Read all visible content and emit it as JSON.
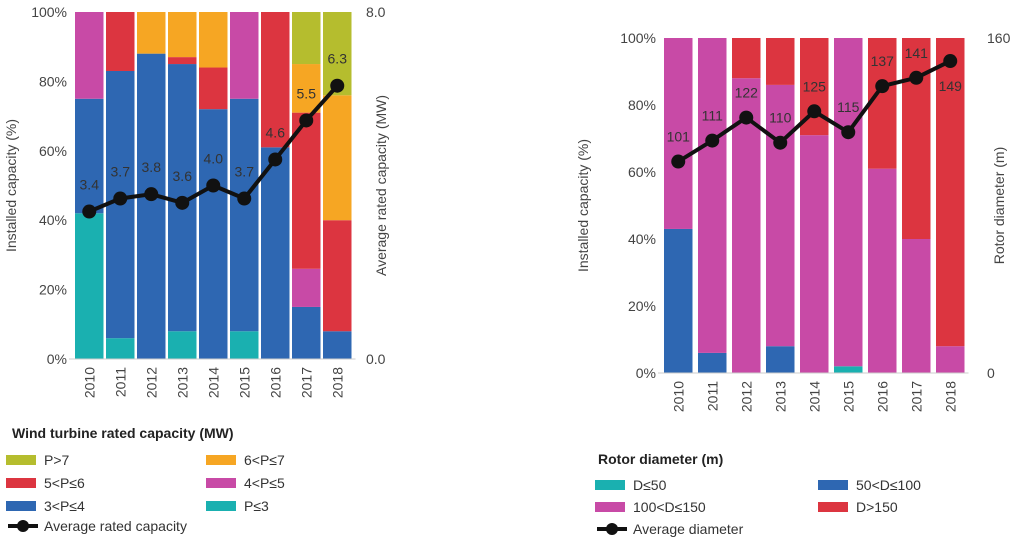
{
  "colors": {
    "P>7": "#b5bd2e",
    "6<P≤7": "#f6a623",
    "5<P≤6": "#dc3540",
    "4<P≤5": "#c84aa6",
    "3<P≤4": "#2e67b2",
    "P≤3": "#1ab0b0",
    "D≤50": "#1ab0b0",
    "50<D≤100": "#2e67b2",
    "100<D≤150": "#c84aa6",
    "D>150": "#dc3540",
    "line": "#111111"
  },
  "chart_data": [
    {
      "type": "bar",
      "stacked": true,
      "categories": [
        "2010",
        "2011",
        "2012",
        "2013",
        "2014",
        "2015",
        "2016",
        "2017",
        "2018"
      ],
      "ylabel": "Installed capacity (%)",
      "ylim": [
        0,
        100
      ],
      "y_ticks": [
        "0%",
        "20%",
        "40%",
        "60%",
        "80%",
        "100%"
      ],
      "y2label": "Average rated capacity (MW)",
      "y2lim": [
        0,
        8
      ],
      "y2_ticks": [
        "0.0",
        "8.0"
      ],
      "legend_title": "Wind turbine rated capacity (MW)",
      "series": [
        {
          "name": "P≤3",
          "values": [
            42,
            6,
            0,
            8,
            0,
            8,
            0,
            0,
            0
          ]
        },
        {
          "name": "3<P≤4",
          "values": [
            33,
            77,
            88,
            77,
            72,
            67,
            61,
            15,
            8
          ]
        },
        {
          "name": "4<P≤5",
          "values": [
            25,
            0,
            0,
            0,
            0,
            25,
            0,
            11,
            0
          ]
        },
        {
          "name": "5<P≤6",
          "values": [
            0,
            17,
            0,
            2,
            12,
            0,
            39,
            45,
            32
          ]
        },
        {
          "name": "6<P≤7",
          "values": [
            0,
            0,
            12,
            13,
            16,
            0,
            0,
            14,
            36
          ]
        },
        {
          "name": "P>7",
          "values": [
            0,
            0,
            0,
            0,
            0,
            0,
            0,
            15,
            24
          ]
        }
      ],
      "line": {
        "name": "Average rated capacity",
        "values": [
          3.4,
          3.7,
          3.8,
          3.6,
          4.0,
          3.7,
          4.6,
          5.5,
          6.3
        ],
        "labels": [
          "3.4",
          "3.7",
          "3.8",
          "3.6",
          "4.0",
          "3.7",
          "4.6",
          "5.5",
          "6.3"
        ]
      },
      "legend_order": [
        "P>7",
        "6<P≤7",
        "5<P≤6",
        "4<P≤5",
        "3<P≤4",
        "P≤3",
        "Average rated capacity"
      ]
    },
    {
      "type": "bar",
      "stacked": true,
      "categories": [
        "2010",
        "2011",
        "2012",
        "2013",
        "2014",
        "2015",
        "2016",
        "2017",
        "2018"
      ],
      "ylabel": "Installed capacity (%)",
      "ylim": [
        0,
        100
      ],
      "y_ticks": [
        "0%",
        "20%",
        "40%",
        "60%",
        "80%",
        "100%"
      ],
      "y2label": "Rotor diameter (m)",
      "y2lim": [
        0,
        160
      ],
      "y2_ticks": [
        "0",
        "160"
      ],
      "legend_title": "Rotor diameter (m)",
      "series": [
        {
          "name": "D≤50",
          "values": [
            0,
            0,
            0,
            0,
            0,
            2,
            0,
            0,
            0
          ]
        },
        {
          "name": "50<D≤100",
          "values": [
            43,
            6,
            0,
            8,
            0,
            0,
            0,
            0,
            0
          ]
        },
        {
          "name": "100<D≤150",
          "values": [
            57,
            94,
            88,
            78,
            71,
            98,
            61,
            40,
            8
          ]
        },
        {
          "name": "D>150",
          "values": [
            0,
            0,
            12,
            14,
            29,
            0,
            39,
            60,
            92
          ]
        }
      ],
      "line": {
        "name": "Average diameter",
        "values": [
          101,
          111,
          122,
          110,
          125,
          115,
          137,
          141,
          149
        ],
        "labels": [
          "101",
          "111",
          "122",
          "110",
          "125",
          "115",
          "137",
          "141",
          "149"
        ]
      },
      "legend_order": [
        "D≤50",
        "50<D≤100",
        "100<D≤150",
        "D>150",
        "Average diameter"
      ]
    }
  ]
}
